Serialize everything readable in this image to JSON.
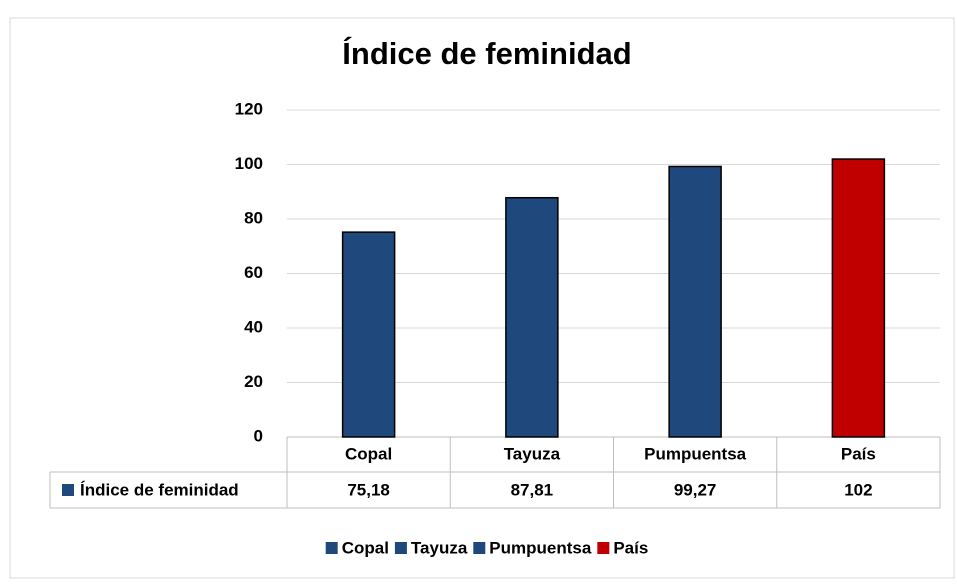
{
  "chart_data": {
    "type": "bar",
    "title": "Índice de feminidad",
    "categories": [
      "Copal",
      "Tayuza",
      "Pumpuentsa",
      "País"
    ],
    "series": [
      {
        "name": "Índice de feminidad",
        "color": "#1f497d",
        "colors": [
          "#1f497d",
          "#1f497d",
          "#1f497d",
          "#c00000"
        ],
        "values": [
          75.18,
          87.81,
          99.27,
          102
        ],
        "value_labels": [
          "75,18",
          "87,81",
          "99,27",
          "102"
        ]
      }
    ],
    "ylim": [
      0,
      120
    ],
    "yticks": [
      0,
      20,
      40,
      60,
      80,
      100,
      120
    ],
    "grid": true,
    "legend": "bottom"
  }
}
